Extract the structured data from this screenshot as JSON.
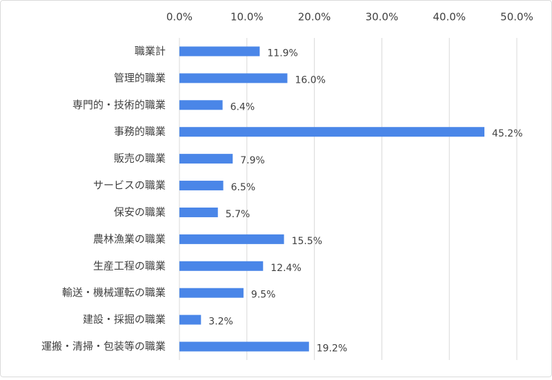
{
  "chart_data": {
    "type": "bar",
    "orientation": "horizontal",
    "color": "#4a86e8",
    "grid": true,
    "categories": [
      "職業計",
      "管理的職業",
      "専門的・技術的職業",
      "事務的職業",
      "販売の職業",
      "サービスの職業",
      "保安の職業",
      "農林漁業の職業",
      "生産工程の職業",
      "輸送・機械運転の職業",
      "建設・採掘の職業",
      "運搬・清掃・包装等の職業"
    ],
    "values": [
      11.9,
      16.0,
      6.4,
      45.2,
      7.9,
      6.5,
      5.7,
      15.5,
      12.4,
      9.5,
      3.2,
      19.2
    ],
    "value_labels": [
      "11.9%",
      "16.0%",
      "6.4%",
      "45.2%",
      "7.9%",
      "6.5%",
      "5.7%",
      "15.5%",
      "12.4%",
      "9.5%",
      "3.2%",
      "19.2%"
    ],
    "xlim": [
      0,
      50
    ],
    "xticks": [
      {
        "value": 0,
        "label": "0.0%"
      },
      {
        "value": 10,
        "label": "10.0%"
      },
      {
        "value": 20,
        "label": "20.0%"
      },
      {
        "value": 30,
        "label": "30.0%"
      },
      {
        "value": 40,
        "label": "40.0%"
      },
      {
        "value": 50,
        "label": "50.0%"
      }
    ]
  }
}
